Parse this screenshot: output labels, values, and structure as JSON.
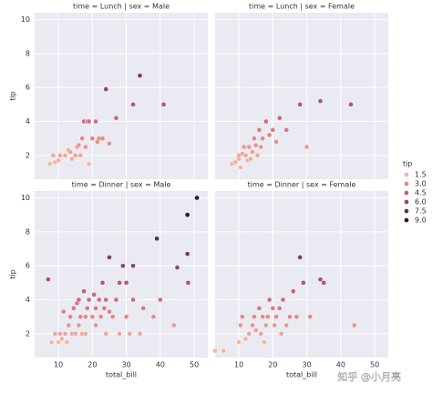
{
  "chart_data": [
    {
      "type": "scatter",
      "title": "time = Lunch | sex = Male",
      "y_label": "tip",
      "x": [
        7.5,
        8.5,
        9,
        10,
        10.5,
        12,
        13,
        13.5,
        14,
        15,
        15.5,
        16,
        16.5,
        17,
        17.5,
        18,
        18.5,
        19,
        19,
        20,
        21,
        21.5,
        22,
        23,
        24,
        25,
        27,
        32,
        34,
        41
      ],
      "y": [
        1.5,
        2,
        1.6,
        1.7,
        2,
        2,
        2.3,
        2.2,
        1.8,
        2,
        2.5,
        2.6,
        2,
        3,
        4,
        2.5,
        4,
        4,
        1.5,
        3,
        4,
        2.8,
        3,
        3,
        5.9,
        2.7,
        4.2,
        5,
        6.7,
        5
      ],
      "xlim": [
        3,
        54
      ],
      "ylim": [
        0.6,
        10.4
      ],
      "xticks": [
        10,
        20,
        30,
        40,
        50
      ],
      "yticks": [
        2,
        4,
        6,
        8,
        10
      ],
      "grid": true
    },
    {
      "type": "scatter",
      "title": "time = Lunch | sex = Female",
      "x": [
        8,
        9,
        10,
        10,
        10.5,
        11,
        11.5,
        12,
        12.5,
        13,
        13.5,
        14,
        14.5,
        15,
        15.5,
        16,
        16.5,
        17,
        18,
        19,
        20,
        21,
        22,
        24,
        28,
        30,
        34,
        43
      ],
      "y": [
        1.5,
        1.6,
        1.8,
        2,
        1.3,
        2.1,
        2.5,
        2,
        1.7,
        2.5,
        1.8,
        2.2,
        3,
        2.6,
        2,
        3.5,
        2.5,
        3,
        4,
        3.2,
        3.5,
        2.8,
        4.2,
        3.5,
        5,
        2.5,
        5.2,
        5
      ],
      "xlim": [
        3,
        54
      ],
      "ylim": [
        0.6,
        10.4
      ],
      "xticks": [
        10,
        20,
        30,
        40,
        50
      ],
      "yticks": [
        2,
        4,
        6,
        8,
        10
      ],
      "grid": true
    },
    {
      "type": "scatter",
      "title": "time = Dinner | sex = Male",
      "x_label": "total_bill",
      "y_label": "tip",
      "x": [
        7,
        8,
        9,
        10,
        10.5,
        11,
        11.5,
        12,
        12.5,
        13,
        13.5,
        14,
        14.5,
        15,
        15.5,
        16,
        16,
        16.5,
        17,
        17.5,
        18,
        18,
        18.5,
        19,
        20,
        20.5,
        21,
        21,
        22,
        22.5,
        23,
        23.5,
        24,
        24,
        25,
        25,
        26,
        27,
        28,
        29,
        30,
        30,
        31,
        32,
        32,
        35,
        38,
        39,
        40,
        44,
        45,
        48,
        48,
        50.8,
        48.2,
        34,
        28
      ],
      "y": [
        5.2,
        1.5,
        2,
        1.5,
        2,
        1.7,
        3.3,
        2,
        1.5,
        2.5,
        3,
        2,
        3.5,
        2,
        3.8,
        2.5,
        4,
        3,
        2,
        4.5,
        3,
        2,
        3.5,
        4,
        3,
        4.3,
        3.5,
        2.5,
        4,
        3,
        5,
        3.5,
        4,
        2,
        6.5,
        3.3,
        3,
        4,
        5,
        6,
        3,
        5,
        2,
        6,
        4,
        3.5,
        3,
        7.6,
        4,
        2.5,
        5.9,
        6.7,
        9,
        10,
        5,
        2,
        2
      ],
      "xlim": [
        3,
        54
      ],
      "ylim": [
        0.6,
        10.4
      ],
      "xticks": [
        10,
        20,
        30,
        40,
        50
      ],
      "yticks": [
        2,
        4,
        6,
        8,
        10
      ],
      "grid": true
    },
    {
      "type": "scatter",
      "title": "time = Dinner | sex = Female",
      "x_label": "total_bill",
      "x": [
        3,
        5.5,
        10,
        10.5,
        11,
        12,
        13,
        14,
        14.5,
        15,
        16,
        16.5,
        17,
        17.5,
        18,
        18.5,
        19,
        20,
        20.5,
        21,
        22,
        22.5,
        23,
        24,
        25,
        26,
        27,
        28,
        29,
        31,
        34,
        35,
        44
      ],
      "y": [
        1,
        1,
        1.5,
        2.5,
        3,
        1.7,
        2,
        2.5,
        3,
        2.2,
        3.5,
        2,
        3,
        1.5,
        2.5,
        3,
        4,
        3.5,
        2.5,
        3,
        3.5,
        2,
        4,
        2.5,
        3,
        4.5,
        3,
        6.5,
        5,
        3,
        5.2,
        5,
        2.5
      ],
      "xlim": [
        3,
        54
      ],
      "ylim": [
        0.6,
        10.4
      ],
      "xticks": [
        10,
        20,
        30,
        40,
        50
      ],
      "yticks": [
        2,
        4,
        6,
        8,
        10
      ],
      "grid": true
    }
  ],
  "legend": {
    "title": "tip",
    "entries": [
      {
        "value": 1.5,
        "label": "1.5",
        "color": "#f3b79f"
      },
      {
        "value": 3,
        "label": "3.0",
        "color": "#e08a8a"
      },
      {
        "value": 4.5,
        "label": "4.5",
        "color": "#c0607f"
      },
      {
        "value": 6,
        "label": "6.0",
        "color": "#914670"
      },
      {
        "value": 7.5,
        "label": "7.5",
        "color": "#5e2e5d"
      },
      {
        "value": 9,
        "label": "9.0",
        "color": "#2c1838"
      }
    ]
  },
  "watermark": "知乎 @小月亮"
}
